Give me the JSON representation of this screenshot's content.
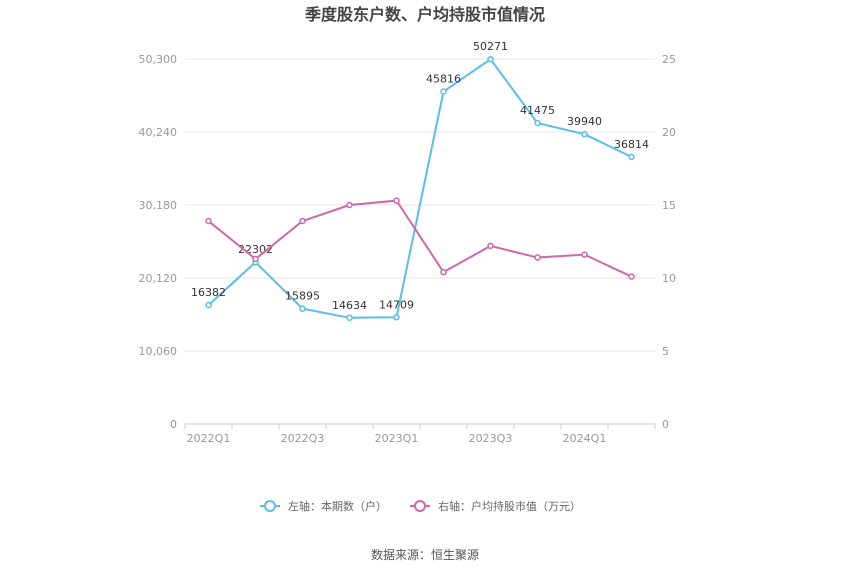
{
  "chart_data": {
    "type": "line",
    "title": "季度股东户数、户均持股市值情况",
    "categories": [
      "2022Q1",
      "2022Q2",
      "2022Q3",
      "2022Q4",
      "2023Q1",
      "2023Q2",
      "2023Q3",
      "2023Q4",
      "2024Q1",
      "2024Q2"
    ],
    "x_tick_labels": [
      "2022Q1",
      "2022Q3",
      "2023Q1",
      "2023Q3",
      "2024Q1"
    ],
    "left_axis": {
      "ylim": [
        0,
        50300
      ],
      "ticks": [
        "0",
        "10,060",
        "20,120",
        "30,180",
        "40,240",
        "50,300"
      ]
    },
    "right_axis": {
      "ylim": [
        0,
        25
      ],
      "ticks": [
        "0",
        "5",
        "10",
        "15",
        "20",
        "25"
      ]
    },
    "series": [
      {
        "name": "左轴：本期数（户）",
        "axis": "left",
        "color": "#5bbde9",
        "values": [
          16382,
          22302,
          15895,
          14634,
          14709,
          45816,
          50271,
          41475,
          39940,
          36814
        ],
        "labels": [
          "16382",
          "22302",
          "15895",
          "14634",
          "14709",
          "45816",
          "50271",
          "41475",
          "39940",
          "36814"
        ]
      },
      {
        "name": "右轴：户均持股市值（万元）",
        "axis": "right",
        "color": "#d166ad",
        "values": [
          13.9,
          11.3,
          13.9,
          15.0,
          15.3,
          10.4,
          12.2,
          11.4,
          11.6,
          10.1
        ]
      }
    ],
    "legend_position": "bottom-center",
    "grid": true
  },
  "source_text": "数据来源：恒生聚源"
}
